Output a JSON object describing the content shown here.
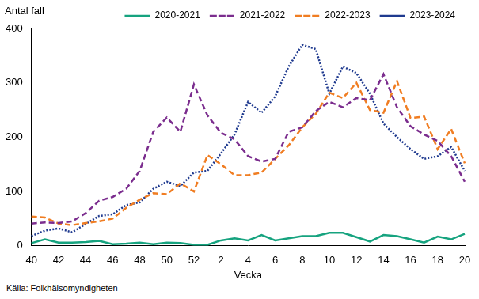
{
  "chart_data": {
    "type": "line",
    "y_label": "Antal fall",
    "x_label": "Vecka",
    "source": "Källa: Folkhälsomyndigheten",
    "categories": [
      "40",
      null,
      "42",
      null,
      "44",
      null,
      "46",
      null,
      "48",
      null,
      "50",
      null,
      "52",
      null,
      "2",
      null,
      "4",
      null,
      "6",
      null,
      "8",
      null,
      "10",
      null,
      "12",
      null,
      "14",
      null,
      "16",
      null,
      "18",
      null,
      "20"
    ],
    "series": [
      {
        "name": "2020-2021",
        "color": "#16a37f",
        "line_style": "solid",
        "values": [
          5,
          12,
          6,
          6,
          7,
          9,
          3,
          4,
          6,
          3,
          6,
          5,
          2,
          2,
          10,
          14,
          10,
          20,
          10,
          14,
          18,
          18,
          24,
          24,
          16,
          8,
          20,
          18,
          12,
          6,
          17,
          12,
          22
        ]
      },
      {
        "name": "2021-2022",
        "color": "#7b2d8e",
        "line_style": "dashed",
        "values": [
          41,
          43,
          42,
          45,
          60,
          83,
          90,
          105,
          138,
          210,
          236,
          210,
          297,
          240,
          208,
          196,
          165,
          155,
          160,
          210,
          218,
          248,
          265,
          255,
          272,
          268,
          316,
          255,
          220,
          205,
          193,
          165,
          118
        ]
      },
      {
        "name": "2022-2023",
        "color": "#f07d22",
        "line_style": "dashed",
        "values": [
          54,
          52,
          41,
          38,
          42,
          45,
          50,
          70,
          85,
          97,
          95,
          115,
          100,
          167,
          150,
          130,
          130,
          135,
          160,
          185,
          218,
          243,
          282,
          272,
          300,
          250,
          245,
          303,
          235,
          238,
          178,
          215,
          152
        ]
      },
      {
        "name": "2023-2024",
        "color": "#1f3a8f",
        "line_style": "dotted",
        "values": [
          18,
          28,
          32,
          25,
          40,
          55,
          58,
          75,
          80,
          105,
          118,
          110,
          135,
          138,
          170,
          205,
          265,
          245,
          275,
          330,
          370,
          362,
          280,
          330,
          318,
          280,
          225,
          200,
          178,
          160,
          165,
          182,
          138
        ]
      }
    ],
    "ylim": [
      0,
      400
    ],
    "yticks": [
      0,
      100,
      200,
      300,
      400
    ],
    "grid": false,
    "legend": "top",
    "marker": "none"
  }
}
